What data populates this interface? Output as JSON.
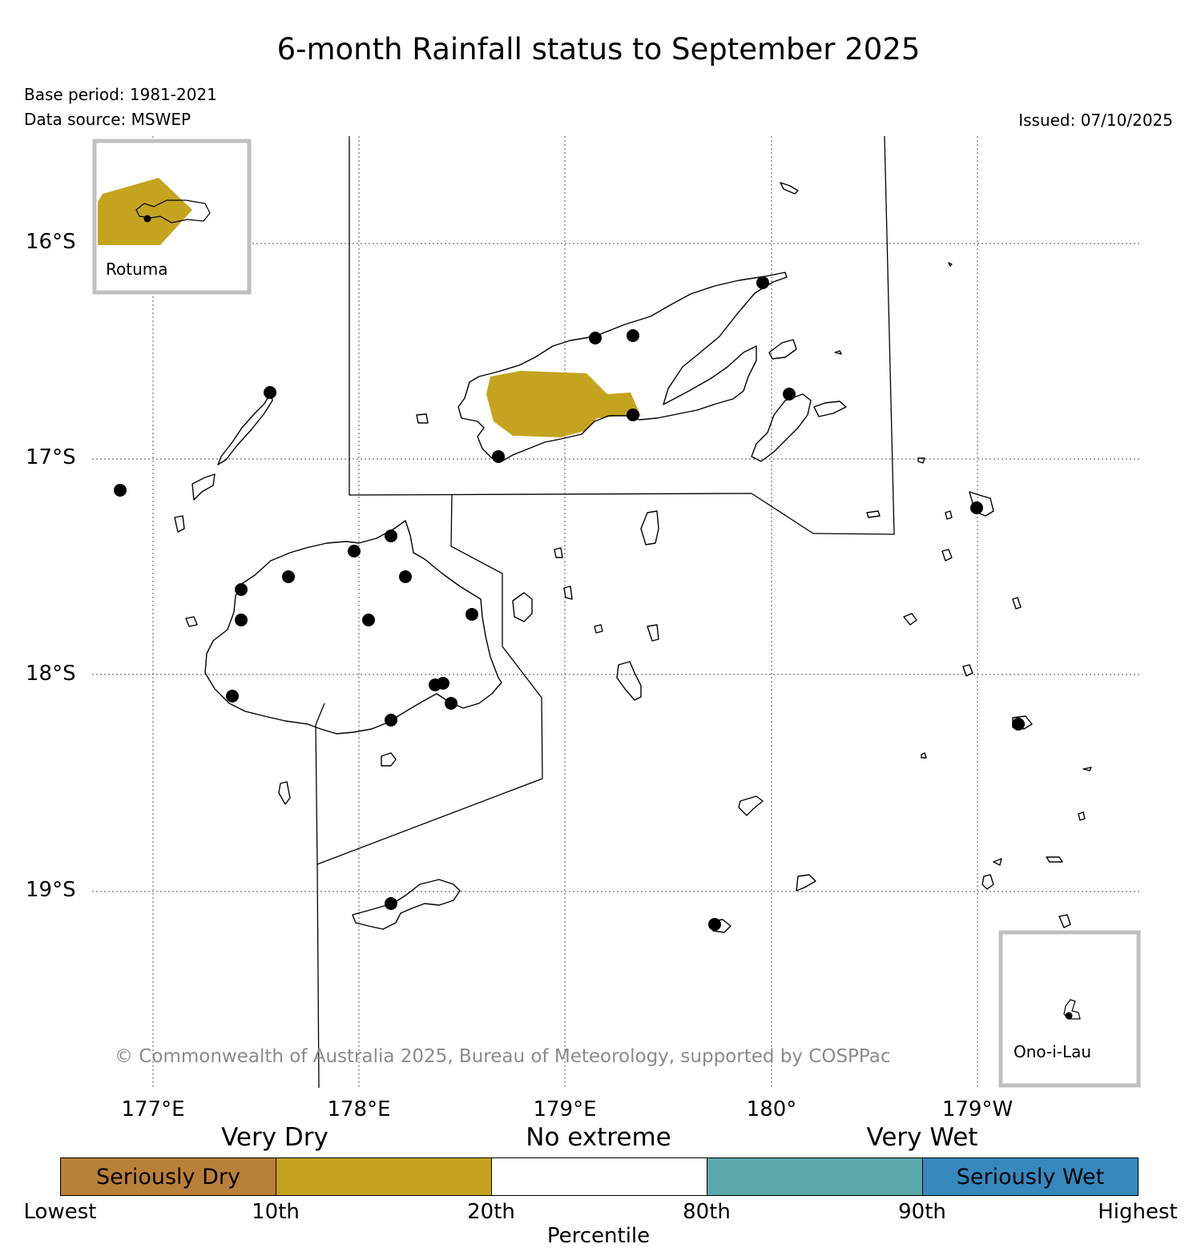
{
  "title": "6-month Rainfall status to September 2025",
  "base_period": "Base period: 1981-2021",
  "data_source": "Data source: MSWEP",
  "issued": "Issued: 07/10/2025",
  "latitude_labels": [
    "16°S",
    "17°S",
    "18°S",
    "19°S"
  ],
  "longitude_labels": [
    "177°E",
    "178°E",
    "179°E",
    "180°",
    "179°W"
  ],
  "insets": {
    "rotuma": "Rotuma",
    "ono_i_lau": "Ono-i-Lau"
  },
  "copyright": "© Commonwealth of Australia 2025, Bureau of Meteorology, supported by COSPPac",
  "legend": {
    "category_labels": [
      "Very Dry",
      "No extreme",
      "Very Wet"
    ],
    "segments": [
      {
        "label": "Seriously Dry",
        "color": "#b98039"
      },
      {
        "label": "",
        "color": "#c4a41f"
      },
      {
        "label": "",
        "color": "#ffffff"
      },
      {
        "label": "",
        "color": "#5ba9ad"
      },
      {
        "label": "Seriously Wet",
        "color": "#3688bd"
      }
    ],
    "tick_labels": [
      "Lowest",
      "10th",
      "20th",
      "80th",
      "90th",
      "Highest"
    ],
    "axis_label": "Percentile"
  },
  "colors": {
    "very_dry": "#c4a41f",
    "inset_border": "#c0c0c0",
    "station": "#000000",
    "grid": "#555555"
  }
}
